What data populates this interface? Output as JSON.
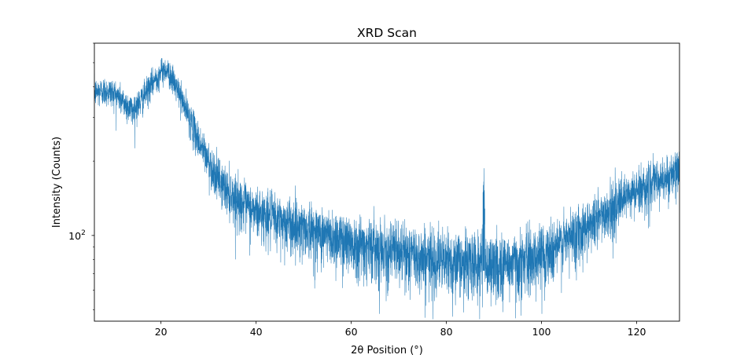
{
  "chart_data": {
    "type": "line",
    "title": "XRD Scan",
    "xlabel": "2θ Position (°)",
    "ylabel": "Intensity (Counts)",
    "xscale": "linear",
    "yscale": "log",
    "xlim": [
      6,
      129
    ],
    "ylim": [
      45,
      600
    ],
    "x_ticks": [
      20,
      40,
      60,
      80,
      100,
      120
    ],
    "y_major_ticks": [
      {
        "value": 100,
        "base": "10",
        "exp": "2"
      }
    ],
    "grid": false,
    "legend": "none",
    "line_color": "#1f77b4",
    "series": [
      {
        "x": [
          6,
          8,
          10,
          12,
          14,
          16,
          18,
          20,
          21,
          22,
          24,
          26,
          28,
          30,
          32,
          34,
          36,
          38,
          40,
          45,
          50,
          55,
          60,
          65,
          70,
          75,
          80,
          85,
          87.5,
          87.9,
          88.3,
          90,
          95,
          100,
          105,
          110,
          115,
          120,
          125,
          129
        ],
        "y": [
          380,
          385,
          380,
          350,
          320,
          355,
          410,
          460,
          470,
          445,
          370,
          300,
          240,
          200,
          170,
          153,
          140,
          131,
          125,
          115,
          108,
          100,
          95,
          90,
          86,
          82,
          79,
          78,
          77,
          165,
          76,
          76,
          78,
          84,
          95,
          112,
          130,
          152,
          168,
          180
        ]
      }
    ]
  }
}
